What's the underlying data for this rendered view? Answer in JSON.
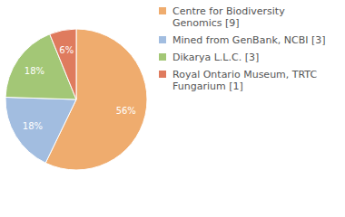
{
  "chart_data": {
    "type": "pie",
    "categories": [
      "Centre for Biodiversity Genomics [9]",
      "Mined from GenBank, NCBI [3]",
      "Dikarya L.L.C. [3]",
      "Royal Ontario Museum, TRTC Fungarium [1]"
    ],
    "values": [
      56,
      18,
      18,
      6
    ],
    "value_labels": [
      "56%",
      "18%",
      "18%",
      "6%"
    ],
    "colors": [
      "#efac6e",
      "#a2bde0",
      "#a3c776",
      "#df7b5e"
    ],
    "data_labels": true,
    "legend": "top-right"
  }
}
